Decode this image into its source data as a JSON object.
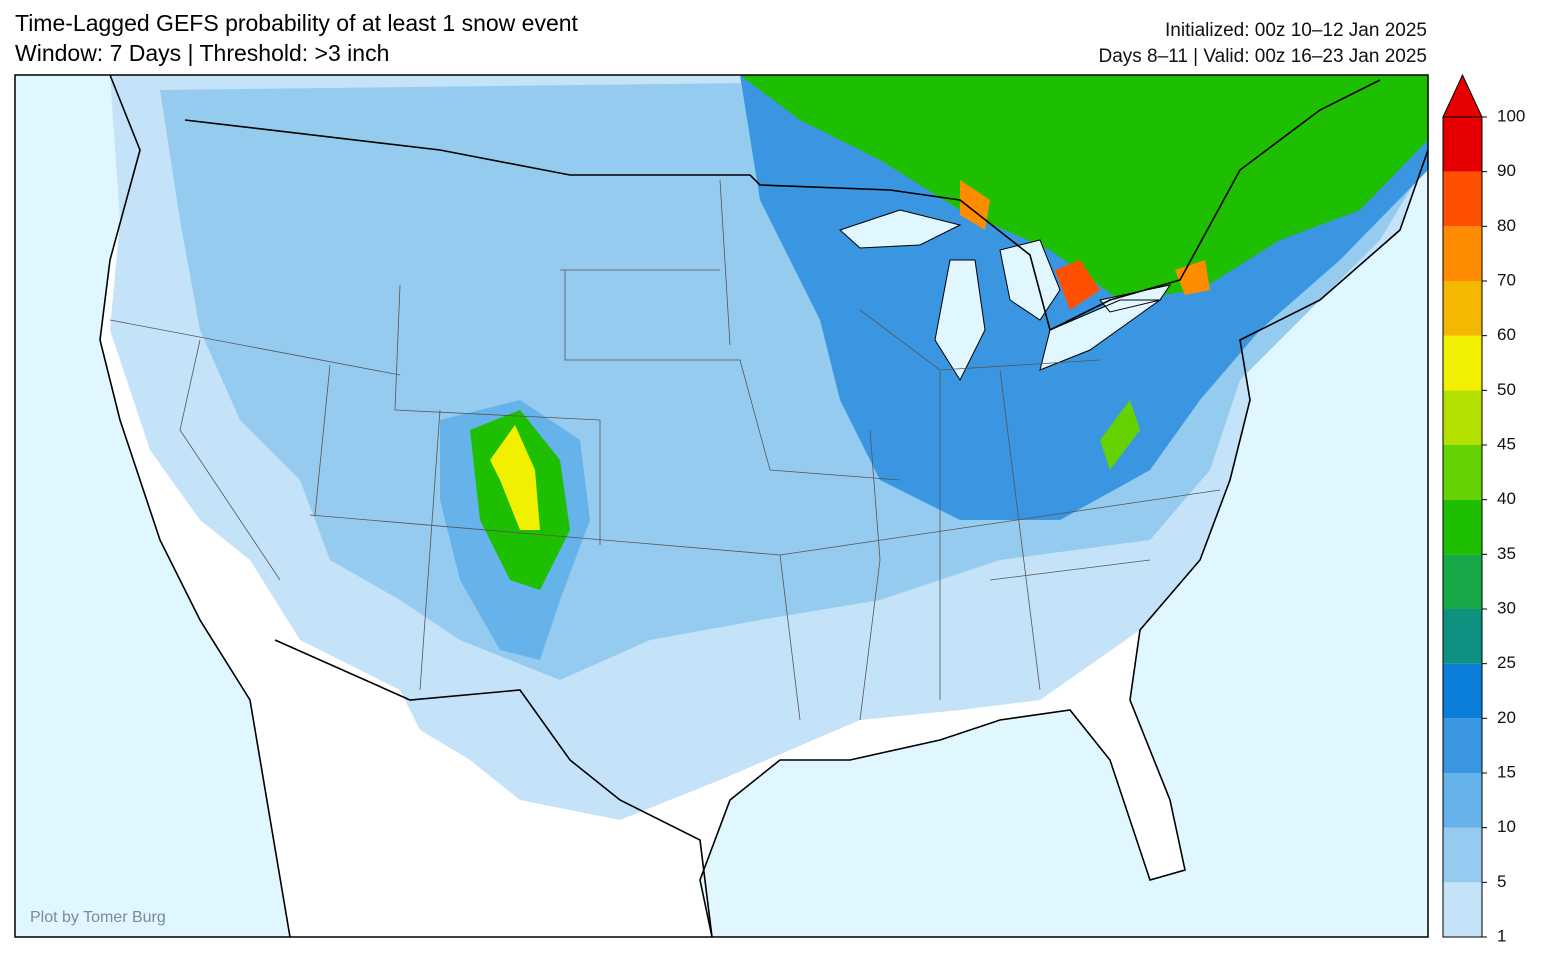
{
  "header": {
    "title": "Time-Lagged GEFS probability of at least 1 snow event",
    "subtitle": "Window: 7 Days | Threshold: >3 inch",
    "initialized": "Initialized: 00z 10–12 Jan 2025",
    "valid": "Days 8–11 | Valid: 00z 16–23 Jan 2025"
  },
  "colorbar": {
    "ticks": [
      1,
      5,
      10,
      15,
      20,
      25,
      30,
      35,
      40,
      45,
      50,
      60,
      70,
      80,
      90,
      100
    ],
    "colors": [
      "#c4e2f8",
      "#96cbf0",
      "#66b2ea",
      "#3a96e0",
      "#0a7ed8",
      "#109080",
      "#18a848",
      "#1ebe00",
      "#64d200",
      "#b4e100",
      "#f0f000",
      "#f5b800",
      "#ff8c00",
      "#ff5000",
      "#e60000"
    ],
    "extend": "max"
  },
  "credit": "Plot by Tomer Burg"
}
